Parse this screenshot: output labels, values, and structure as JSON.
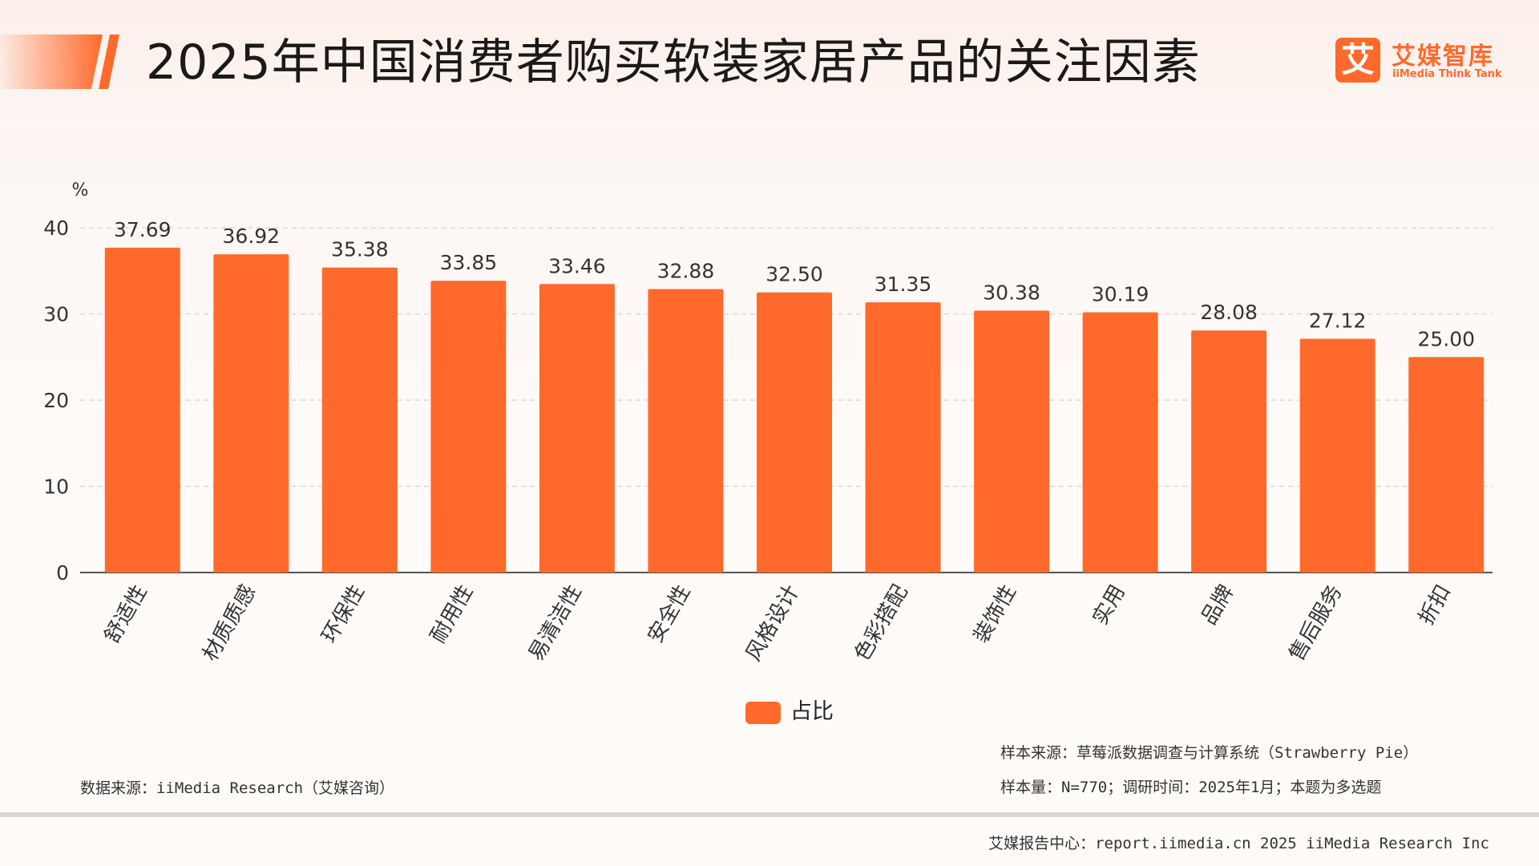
{
  "page": {
    "title": "2025年中国消费者购买软装家居产品的关注因素"
  },
  "logo": {
    "mark": "艾",
    "name_cn": "艾媒智库",
    "name_en": "iiMedia Think Tank"
  },
  "colors": {
    "bar": "#ff6a2c",
    "accent": "#ff6a2c",
    "grid": "#d9d9d9",
    "axis": "#555555"
  },
  "chart_data": {
    "type": "bar",
    "title": "2025年中国消费者购买软装家居产品的关注因素",
    "ylabel": "%",
    "xlabel": "",
    "ylim": [
      0,
      40
    ],
    "yticks": [
      0,
      10,
      20,
      30,
      40
    ],
    "grid": true,
    "legend_position": "bottom",
    "categories": [
      "舒适性",
      "材质质感",
      "环保性",
      "耐用性",
      "易清洁性",
      "安全性",
      "风格设计",
      "色彩搭配",
      "装饰性",
      "实用",
      "品牌",
      "售后服务",
      "折扣"
    ],
    "series": [
      {
        "name": "占比",
        "values": [
          37.69,
          36.92,
          35.38,
          33.85,
          33.46,
          32.88,
          32.5,
          31.35,
          30.38,
          30.19,
          28.08,
          27.12,
          25.0
        ],
        "labels": [
          "37.69",
          "36.92",
          "35.38",
          "33.85",
          "33.46",
          "32.88",
          "32.50",
          "31.35",
          "30.38",
          "30.19",
          "28.08",
          "27.12",
          "25.00"
        ]
      }
    ]
  },
  "notes": {
    "data_source": "数据来源：iiMedia Research（艾媒咨询）",
    "sample_source": "样本来源：草莓派数据调查与计算系统（Strawberry Pie）",
    "sample_size": "样本量：N=770；调研时间：2025年1月；本题为多选题"
  },
  "footer": {
    "text": "艾媒报告中心：report.iimedia.cn  2025 iiMedia Research Inc"
  }
}
